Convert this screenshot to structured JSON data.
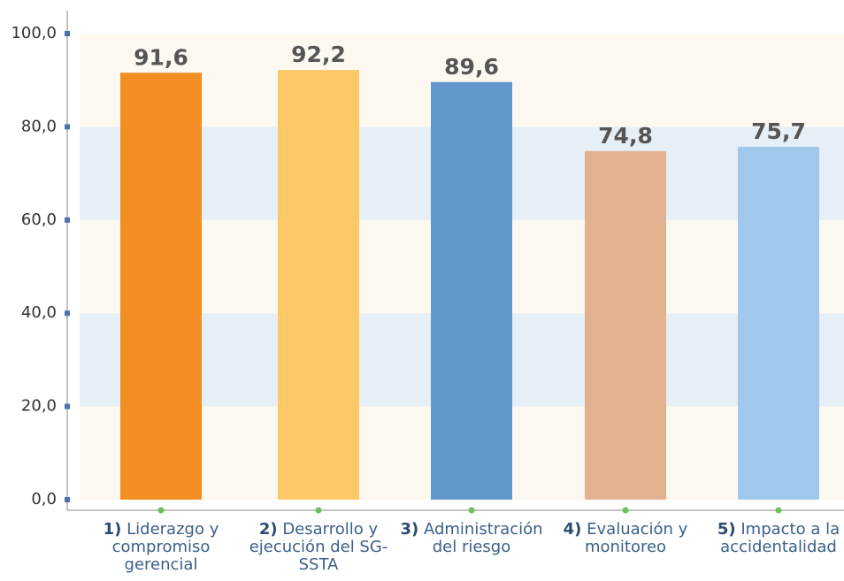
{
  "chart_data": {
    "type": "bar",
    "categories": [
      "1) Liderazgo y compromiso gerencial",
      "2) Desarrollo y ejecución del SG-SSTA",
      "3) Administración del riesgo",
      "4) Evaluación y monitoreo",
      "5) Impacto a la accidentalidad"
    ],
    "values": [
      91.6,
      92.2,
      89.6,
      74.8,
      75.7
    ],
    "value_labels": [
      "91,6",
      "92,2",
      "89,6",
      "74,8",
      "75,7"
    ],
    "colors": [
      "#f28e22",
      "#fcc966",
      "#6398cc",
      "#e2b290",
      "#9fc8ec"
    ],
    "ylim": [
      0,
      100
    ],
    "yticks": [
      {
        "value": 0,
        "label": "0,0"
      },
      {
        "value": 20,
        "label": "20,0"
      },
      {
        "value": 40,
        "label": "40,0"
      },
      {
        "value": 60,
        "label": "60,0"
      },
      {
        "value": 80,
        "label": "80,0"
      },
      {
        "value": 100,
        "label": "100,0"
      }
    ]
  }
}
